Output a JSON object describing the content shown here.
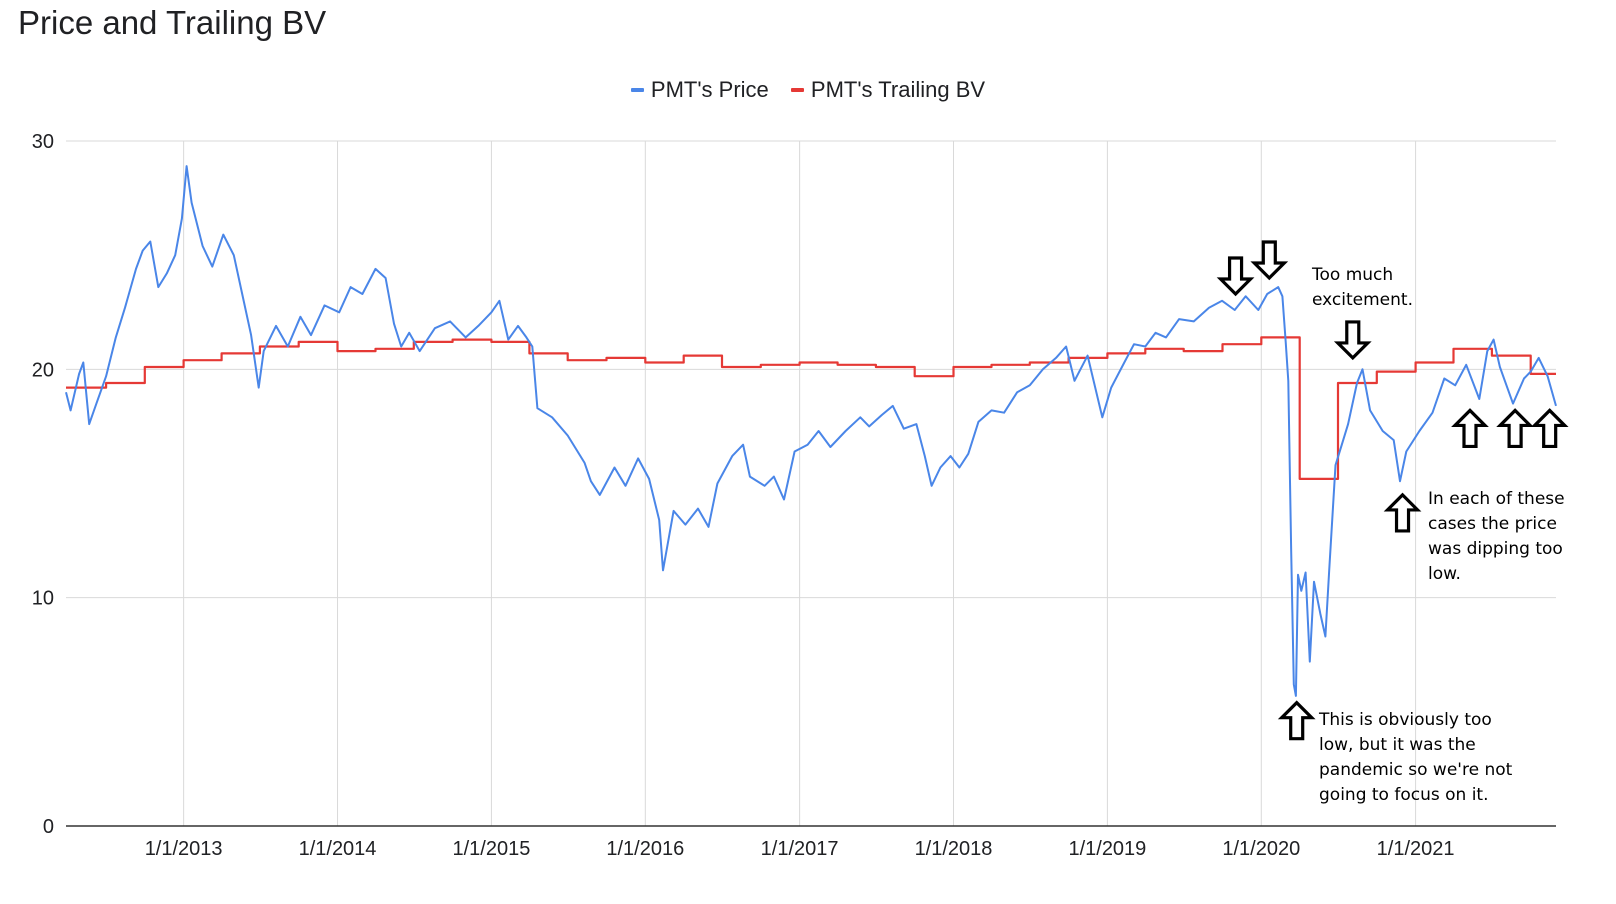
{
  "colors": {
    "price": "#4a86e8",
    "bv": "#e53935",
    "grid": "#d9d9d9",
    "axis": "#333333",
    "text": "#202124"
  },
  "chart_data": {
    "type": "line",
    "title": "Price and Trailing BV",
    "xlabel": "",
    "ylabel": "",
    "legend_position": "top",
    "grid": true,
    "ylim": [
      0,
      30
    ],
    "xlim": [
      "2012-03-28",
      "2021-11-30"
    ],
    "yticks": [
      "0",
      "10",
      "20",
      "30"
    ],
    "xticks": [
      {
        "date": "2013-01-01",
        "label": "1/1/2013"
      },
      {
        "date": "2014-01-01",
        "label": "1/1/2014"
      },
      {
        "date": "2015-01-01",
        "label": "1/1/2015"
      },
      {
        "date": "2016-01-01",
        "label": "1/1/2016"
      },
      {
        "date": "2017-01-01",
        "label": "1/1/2017"
      },
      {
        "date": "2018-01-01",
        "label": "1/1/2018"
      },
      {
        "date": "2019-01-01",
        "label": "1/1/2019"
      },
      {
        "date": "2020-01-01",
        "label": "1/1/2020"
      },
      {
        "date": "2021-01-01",
        "label": "1/1/2021"
      }
    ],
    "series": [
      {
        "name": "PMT's Price",
        "kind": "line",
        "points": [
          [
            "2012-03-28",
            19.0
          ],
          [
            "2012-04-08",
            18.2
          ],
          [
            "2012-04-28",
            19.8
          ],
          [
            "2012-05-08",
            20.3
          ],
          [
            "2012-05-22",
            17.6
          ],
          [
            "2012-06-08",
            18.5
          ],
          [
            "2012-07-01",
            19.7
          ],
          [
            "2012-07-24",
            21.4
          ],
          [
            "2012-08-15",
            22.7
          ],
          [
            "2012-09-10",
            24.4
          ],
          [
            "2012-09-26",
            25.2
          ],
          [
            "2012-10-14",
            25.6
          ],
          [
            "2012-11-02",
            23.6
          ],
          [
            "2012-11-22",
            24.2
          ],
          [
            "2012-12-12",
            25.0
          ],
          [
            "2012-12-28",
            26.6
          ],
          [
            "2013-01-08",
            28.9
          ],
          [
            "2013-01-20",
            27.3
          ],
          [
            "2013-02-15",
            25.4
          ],
          [
            "2013-03-10",
            24.5
          ],
          [
            "2013-04-05",
            25.9
          ],
          [
            "2013-04-30",
            25.0
          ],
          [
            "2013-05-20",
            23.3
          ],
          [
            "2013-06-10",
            21.5
          ],
          [
            "2013-06-28",
            19.2
          ],
          [
            "2013-07-10",
            20.8
          ],
          [
            "2013-08-08",
            21.9
          ],
          [
            "2013-09-05",
            21.0
          ],
          [
            "2013-10-05",
            22.3
          ],
          [
            "2013-10-30",
            21.5
          ],
          [
            "2013-12-01",
            22.8
          ],
          [
            "2014-01-05",
            22.5
          ],
          [
            "2014-02-01",
            23.6
          ],
          [
            "2014-03-01",
            23.3
          ],
          [
            "2014-04-01",
            24.4
          ],
          [
            "2014-04-25",
            24.0
          ],
          [
            "2014-05-15",
            22.0
          ],
          [
            "2014-06-01",
            21.0
          ],
          [
            "2014-06-20",
            21.6
          ],
          [
            "2014-07-15",
            20.8
          ],
          [
            "2014-08-20",
            21.8
          ],
          [
            "2014-09-25",
            22.1
          ],
          [
            "2014-11-01",
            21.4
          ],
          [
            "2014-12-01",
            21.9
          ],
          [
            "2015-01-01",
            22.5
          ],
          [
            "2015-01-20",
            23.0
          ],
          [
            "2015-02-10",
            21.3
          ],
          [
            "2015-03-05",
            21.9
          ],
          [
            "2015-03-25",
            21.4
          ],
          [
            "2015-04-08",
            21.0
          ],
          [
            "2015-04-20",
            18.3
          ],
          [
            "2015-05-25",
            17.9
          ],
          [
            "2015-07-01",
            17.1
          ],
          [
            "2015-08-10",
            15.9
          ],
          [
            "2015-08-25",
            15.1
          ],
          [
            "2015-09-15",
            14.5
          ],
          [
            "2015-10-20",
            15.7
          ],
          [
            "2015-11-15",
            14.9
          ],
          [
            "2015-12-15",
            16.1
          ],
          [
            "2016-01-10",
            15.2
          ],
          [
            "2016-02-03",
            13.4
          ],
          [
            "2016-02-12",
            11.2
          ],
          [
            "2016-03-08",
            13.8
          ],
          [
            "2016-04-05",
            13.2
          ],
          [
            "2016-05-05",
            13.9
          ],
          [
            "2016-05-30",
            13.1
          ],
          [
            "2016-06-20",
            15.0
          ],
          [
            "2016-07-25",
            16.2
          ],
          [
            "2016-08-20",
            16.7
          ],
          [
            "2016-09-05",
            15.3
          ],
          [
            "2016-10-10",
            14.9
          ],
          [
            "2016-11-01",
            15.3
          ],
          [
            "2016-11-25",
            14.3
          ],
          [
            "2016-12-20",
            16.4
          ],
          [
            "2017-01-20",
            16.7
          ],
          [
            "2017-02-15",
            17.3
          ],
          [
            "2017-03-15",
            16.6
          ],
          [
            "2017-04-20",
            17.3
          ],
          [
            "2017-05-25",
            17.9
          ],
          [
            "2017-06-15",
            17.5
          ],
          [
            "2017-07-15",
            18.0
          ],
          [
            "2017-08-10",
            18.4
          ],
          [
            "2017-09-05",
            17.4
          ],
          [
            "2017-10-05",
            17.6
          ],
          [
            "2017-10-25",
            16.2
          ],
          [
            "2017-11-10",
            14.9
          ],
          [
            "2017-12-01",
            15.7
          ],
          [
            "2017-12-25",
            16.2
          ],
          [
            "2018-01-15",
            15.7
          ],
          [
            "2018-02-05",
            16.3
          ],
          [
            "2018-03-01",
            17.7
          ],
          [
            "2018-04-01",
            18.2
          ],
          [
            "2018-05-01",
            18.1
          ],
          [
            "2018-06-01",
            19.0
          ],
          [
            "2018-07-01",
            19.3
          ],
          [
            "2018-08-01",
            20.0
          ],
          [
            "2018-09-01",
            20.5
          ],
          [
            "2018-09-25",
            21.0
          ],
          [
            "2018-10-15",
            19.5
          ],
          [
            "2018-11-15",
            20.6
          ],
          [
            "2018-12-20",
            17.9
          ],
          [
            "2019-01-10",
            19.2
          ],
          [
            "2019-02-10",
            20.3
          ],
          [
            "2019-03-05",
            21.1
          ],
          [
            "2019-04-01",
            21.0
          ],
          [
            "2019-04-25",
            21.6
          ],
          [
            "2019-05-20",
            21.4
          ],
          [
            "2019-06-20",
            22.2
          ],
          [
            "2019-07-25",
            22.1
          ],
          [
            "2019-08-30",
            22.7
          ],
          [
            "2019-09-30",
            23.0
          ],
          [
            "2019-10-30",
            22.6
          ],
          [
            "2019-11-25",
            23.2
          ],
          [
            "2019-12-25",
            22.6
          ],
          [
            "2020-01-15",
            23.3
          ],
          [
            "2020-02-10",
            23.6
          ],
          [
            "2020-02-20",
            23.2
          ],
          [
            "2020-02-28",
            21.2
          ],
          [
            "2020-03-05",
            19.5
          ],
          [
            "2020-03-12",
            12.0
          ],
          [
            "2020-03-18",
            6.2
          ],
          [
            "2020-03-23",
            5.7
          ],
          [
            "2020-03-28",
            11.0
          ],
          [
            "2020-04-05",
            10.3
          ],
          [
            "2020-04-15",
            11.1
          ],
          [
            "2020-04-25",
            7.2
          ],
          [
            "2020-05-05",
            10.7
          ],
          [
            "2020-05-20",
            9.3
          ],
          [
            "2020-06-01",
            8.3
          ],
          [
            "2020-06-10",
            11.2
          ],
          [
            "2020-06-25",
            15.8
          ],
          [
            "2020-07-10",
            16.7
          ],
          [
            "2020-07-25",
            17.6
          ],
          [
            "2020-08-15",
            19.4
          ],
          [
            "2020-08-28",
            20.0
          ],
          [
            "2020-09-15",
            18.2
          ],
          [
            "2020-10-15",
            17.3
          ],
          [
            "2020-11-10",
            16.9
          ],
          [
            "2020-11-25",
            15.1
          ],
          [
            "2020-12-10",
            16.4
          ],
          [
            "2021-01-10",
            17.3
          ],
          [
            "2021-02-10",
            18.1
          ],
          [
            "2021-03-10",
            19.6
          ],
          [
            "2021-04-05",
            19.3
          ],
          [
            "2021-05-01",
            20.2
          ],
          [
            "2021-06-01",
            18.7
          ],
          [
            "2021-06-20",
            20.8
          ],
          [
            "2021-07-05",
            21.3
          ],
          [
            "2021-07-20",
            20.1
          ],
          [
            "2021-08-20",
            18.5
          ],
          [
            "2021-09-15",
            19.6
          ],
          [
            "2021-10-01",
            19.9
          ],
          [
            "2021-10-20",
            20.5
          ],
          [
            "2021-11-10",
            19.7
          ],
          [
            "2021-11-30",
            18.4
          ]
        ]
      },
      {
        "name": "PMT's Trailing BV",
        "kind": "step",
        "points": [
          [
            "2012-03-28",
            19.2
          ],
          [
            "2012-07-01",
            19.4
          ],
          [
            "2012-10-01",
            20.1
          ],
          [
            "2013-01-01",
            20.4
          ],
          [
            "2013-04-01",
            20.7
          ],
          [
            "2013-07-01",
            21.0
          ],
          [
            "2013-10-01",
            21.2
          ],
          [
            "2014-01-01",
            20.8
          ],
          [
            "2014-04-01",
            20.9
          ],
          [
            "2014-07-01",
            21.2
          ],
          [
            "2014-10-01",
            21.3
          ],
          [
            "2015-01-01",
            21.2
          ],
          [
            "2015-04-01",
            20.7
          ],
          [
            "2015-07-01",
            20.4
          ],
          [
            "2015-10-01",
            20.5
          ],
          [
            "2016-01-01",
            20.3
          ],
          [
            "2016-04-01",
            20.6
          ],
          [
            "2016-07-01",
            20.1
          ],
          [
            "2016-10-01",
            20.2
          ],
          [
            "2017-01-01",
            20.3
          ],
          [
            "2017-04-01",
            20.2
          ],
          [
            "2017-07-01",
            20.1
          ],
          [
            "2017-10-01",
            19.7
          ],
          [
            "2018-01-01",
            20.1
          ],
          [
            "2018-04-01",
            20.2
          ],
          [
            "2018-07-01",
            20.3
          ],
          [
            "2018-10-01",
            20.5
          ],
          [
            "2019-01-01",
            20.7
          ],
          [
            "2019-04-01",
            20.9
          ],
          [
            "2019-07-01",
            20.8
          ],
          [
            "2019-10-01",
            21.1
          ],
          [
            "2020-01-01",
            21.4
          ],
          [
            "2020-04-01",
            15.2
          ],
          [
            "2020-07-01",
            19.4
          ],
          [
            "2020-10-01",
            19.9
          ],
          [
            "2021-01-01",
            20.3
          ],
          [
            "2021-04-01",
            20.9
          ],
          [
            "2021-07-01",
            20.6
          ],
          [
            "2021-10-01",
            19.8
          ],
          [
            "2021-11-30",
            19.8
          ]
        ]
      }
    ],
    "annotations": [
      {
        "id": "excitement",
        "text": "Too much excitement.",
        "arrows": [
          {
            "direction": "down",
            "date": "2019-11-01",
            "value": 23.3
          },
          {
            "direction": "down",
            "date": "2020-01-20",
            "value": 24.0
          },
          {
            "direction": "down",
            "date": "2020-08-05",
            "value": 20.5
          }
        ]
      },
      {
        "id": "pandemic",
        "text": "This is obviously too low, but it was the pandemic so we're not going to focus on it.",
        "arrows": [
          {
            "direction": "up",
            "date": "2020-03-25",
            "value": 5.4
          }
        ]
      },
      {
        "id": "dipping",
        "text": "In each of these cases the price was dipping too low.",
        "arrows": [
          {
            "direction": "up",
            "date": "2020-12-01",
            "value": 14.5
          },
          {
            "direction": "up",
            "date": "2021-05-10",
            "value": 18.2
          },
          {
            "direction": "up",
            "date": "2021-08-25",
            "value": 18.2
          },
          {
            "direction": "up",
            "date": "2021-11-15",
            "value": 18.2
          }
        ]
      }
    ]
  },
  "notes": {
    "excitement": "Too much excitement.",
    "pandemic": "This is obviously too low, but it was the pandemic so we're not going to focus on it.",
    "dipping": "In each of these cases the price was dipping too low."
  }
}
